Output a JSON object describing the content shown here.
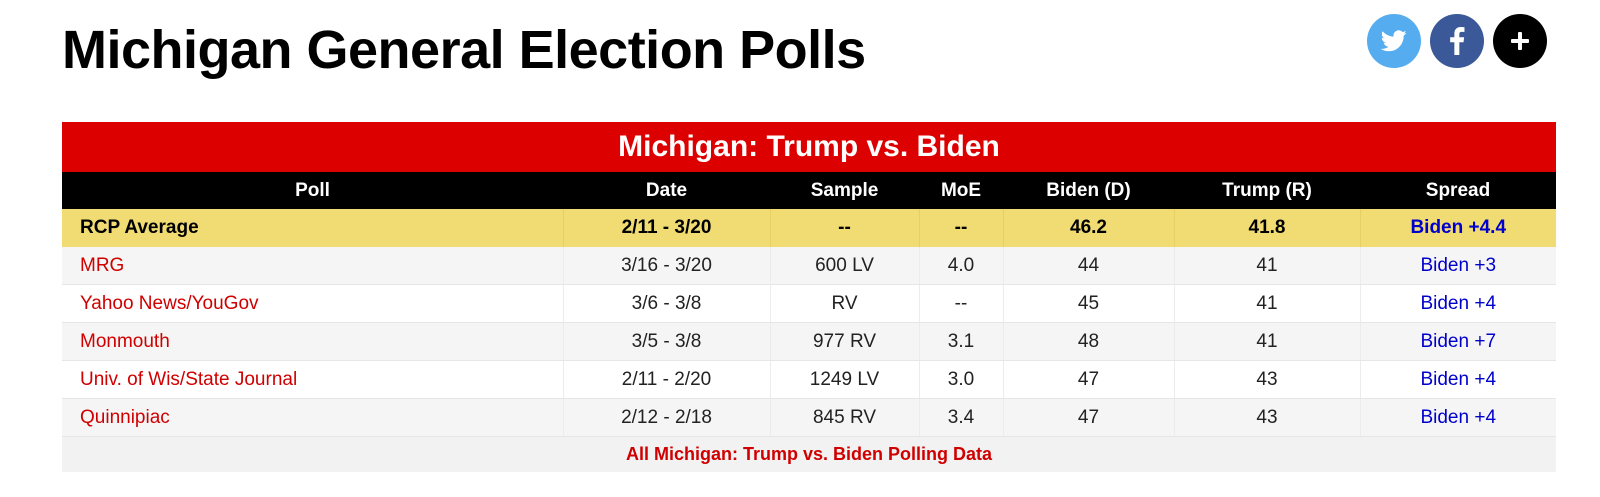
{
  "page_title": "Michigan General Election Polls",
  "share": {
    "twitter_icon": "twitter-bird-icon",
    "facebook_icon": "facebook-f-icon",
    "plus_icon": "plus-icon",
    "facebook_glyph": "f",
    "plus_glyph": "+"
  },
  "table": {
    "caption": "Michigan: Trump vs. Biden",
    "headers": [
      "Poll",
      "Date",
      "Sample",
      "MoE",
      "Biden (D)",
      "Trump (R)",
      "Spread"
    ],
    "average": {
      "poll": "RCP Average",
      "date": "2/11 - 3/20",
      "sample": "--",
      "moe": "--",
      "biden": "46.2",
      "trump": "41.8",
      "spread": "Biden +4.4"
    },
    "rows": [
      {
        "poll": "MRG",
        "date": "3/16 - 3/20",
        "sample": "600 LV",
        "moe": "4.0",
        "biden": "44",
        "trump": "41",
        "spread": "Biden +3"
      },
      {
        "poll": "Yahoo News/YouGov",
        "date": "3/6 - 3/8",
        "sample": "RV",
        "moe": "--",
        "biden": "45",
        "trump": "41",
        "spread": "Biden +4"
      },
      {
        "poll": "Monmouth",
        "date": "3/5 - 3/8",
        "sample": "977 RV",
        "moe": "3.1",
        "biden": "48",
        "trump": "41",
        "spread": "Biden +7"
      },
      {
        "poll": "Univ. of Wis/State Journal",
        "date": "2/11 - 2/20",
        "sample": "1249 LV",
        "moe": "3.0",
        "biden": "47",
        "trump": "43",
        "spread": "Biden +4"
      },
      {
        "poll": "Quinnipiac",
        "date": "2/12 - 2/18",
        "sample": "845 RV",
        "moe": "3.4",
        "biden": "47",
        "trump": "43",
        "spread": "Biden +4"
      }
    ],
    "footer_link": "All Michigan: Trump vs. Biden Polling Data"
  },
  "colors": {
    "caption_bg": "#dd0000",
    "header_bg": "#000000",
    "average_bg": "#f0dc72",
    "poll_link": "#d00000",
    "spread_text": "#0000cc",
    "twitter": "#55acee",
    "facebook": "#3b5998",
    "plus": "#000000"
  }
}
